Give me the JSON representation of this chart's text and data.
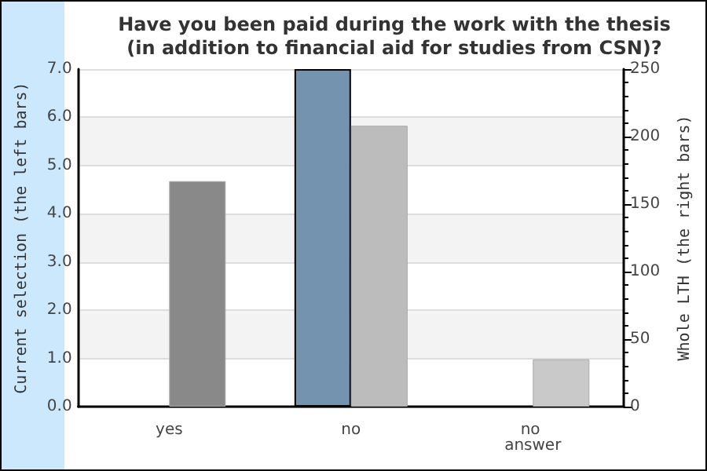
{
  "chart_data": {
    "type": "bar",
    "title": "Have you been paid during the work with the thesis\n(in addition to financial aid for studies from CSN)?",
    "ylabel": "Current selection (the left bars)",
    "y2label": "Whole LTH (the right bars)",
    "categories": [
      "yes",
      "no",
      "no answer"
    ],
    "series": [
      {
        "values": [
          0,
          7,
          0
        ],
        "colors": [
          "#7393ae",
          "#7393ae",
          "#7393ae"
        ]
      },
      {
        "values": [
          167,
          208,
          35
        ],
        "colors": [
          "#898989",
          "#bcbcbc",
          "#c9c9c9"
        ],
        "axis": "y2"
      }
    ],
    "ylim": [
      0,
      7
    ],
    "yticks": [
      {
        "value": 0,
        "label": "0.0"
      },
      {
        "value": 1,
        "label": "1.0"
      },
      {
        "value": 2,
        "label": "2.0"
      },
      {
        "value": 3,
        "label": "3.0"
      },
      {
        "value": 4,
        "label": "4.0"
      },
      {
        "value": 5,
        "label": "5.0"
      },
      {
        "value": 6,
        "label": "6.0"
      },
      {
        "value": 7,
        "label": "7.0"
      }
    ],
    "y2lim": [
      0,
      250
    ],
    "y2ticks": [
      0,
      50,
      100,
      150,
      200,
      250
    ],
    "grid": "y"
  }
}
